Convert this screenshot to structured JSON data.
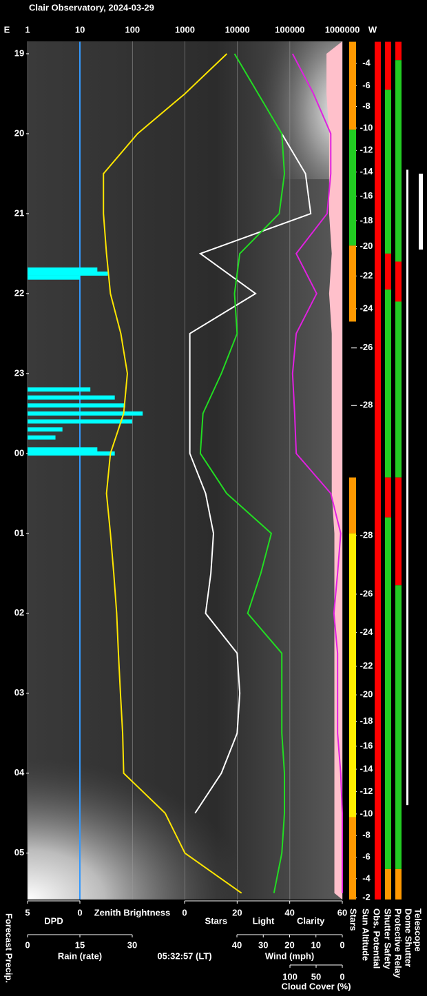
{
  "chart_data": {
    "type": "keogram",
    "title": "Clair Observatory, 2024-03-29",
    "east_label": "E",
    "west_label": "W",
    "xlabel": "Zenith Brightness",
    "xlabel_color": "#ffee00",
    "timestamp": "05:32:57 (LT)",
    "forecast_label": "Forecast Precip.",
    "log_x": true,
    "grid": true,
    "xlim": [
      1,
      1000000
    ],
    "xticks": [
      1,
      10,
      100,
      1000,
      10000,
      100000,
      1000000
    ],
    "ylim": [
      18.845,
      29.58
    ],
    "yticks": [
      19,
      20,
      21,
      22,
      23,
      {
        "value": 24,
        "label": "00"
      },
      {
        "value": 25,
        "label": "01"
      },
      {
        "value": 26,
        "label": "02"
      },
      {
        "value": 27,
        "label": "03"
      },
      {
        "value": 28,
        "label": "04"
      },
      {
        "value": 29,
        "label": "05"
      }
    ],
    "bottom_axes": [
      {
        "lim": [
          5,
          0
        ],
        "ticks": [
          5,
          0
        ],
        "labels": [
          "DPD"
        ],
        "label_colors": [
          "#3399ff"
        ]
      },
      {
        "lim": [
          0,
          60
        ],
        "ticks": [
          0,
          20,
          40,
          60
        ],
        "labels": [
          "Stars",
          "Light",
          "Clarity"
        ],
        "label_colors": [
          "#ffffff",
          "#ffee00",
          "#22dd22"
        ]
      },
      {
        "lim": [
          0,
          30
        ],
        "ticks": [
          0,
          15,
          30
        ],
        "labels": [
          "Rain (rate)"
        ],
        "label_colors": [
          "#00ffff"
        ]
      },
      {
        "lim": [
          40,
          0
        ],
        "ticks": [
          40,
          30,
          20,
          10,
          0
        ],
        "labels": [
          "Wind (mph)"
        ],
        "label_colors": [
          "#ffc0cb"
        ]
      },
      {
        "lim": [
          100,
          0
        ],
        "ticks": [
          100,
          50,
          0
        ],
        "labels": [
          "Cloud Cover (%)"
        ],
        "label_colors": [
          "#e020e0"
        ]
      }
    ],
    "x": [
      19,
      19.5,
      20,
      20.5,
      21,
      21.5,
      22,
      22.5,
      23,
      23.5,
      24,
      24.5,
      25,
      25.5,
      26,
      26.5,
      27,
      27.5,
      28,
      28.5,
      29,
      29.5
    ],
    "series": [
      {
        "axis": 3,
        "style": "area",
        "color": "#ffc0cb",
        "values": [
          6,
          6,
          5,
          5,
          5,
          4,
          5,
          4,
          4,
          4,
          4,
          4,
          3,
          3,
          3,
          3,
          3,
          3,
          3,
          3,
          3,
          3
        ]
      },
      {
        "axis": 0,
        "style": "line",
        "color": "#3399ff",
        "x": [
          18.85,
          29.58
        ],
        "values": [
          0,
          0
        ]
      },
      {
        "axis": 2,
        "style": "bars",
        "color": "#00ffff",
        "x": [
          21.7,
          21.75,
          21.8,
          23.2,
          23.3,
          23.4,
          23.5,
          23.6,
          23.7,
          23.8,
          23.95,
          24.0
        ],
        "values": [
          20,
          23,
          15,
          18,
          25,
          28,
          33,
          30,
          10,
          8,
          20,
          25
        ]
      },
      {
        "axis": "top",
        "style": "line",
        "color": "#ffe600",
        "values": [
          6300,
          1000,
          125,
          28,
          28,
          32,
          38,
          60,
          80,
          68,
          38,
          32,
          38,
          44,
          50,
          54,
          59,
          65,
          68,
          420,
          1000,
          12000
        ]
      },
      {
        "axis": 1,
        "style": "line",
        "color": "#ffffff",
        "values": [
          null,
          null,
          37,
          46,
          48,
          6,
          27,
          2,
          2,
          2,
          2,
          8,
          11,
          10,
          8,
          20,
          21,
          20,
          14,
          4,
          null,
          null
        ]
      },
      {
        "axis": 1,
        "style": "line",
        "color": "#22dd22",
        "values": [
          19,
          28,
          37,
          38,
          36,
          21,
          19,
          20,
          14,
          7,
          6,
          16,
          33,
          29,
          24,
          37,
          37,
          37,
          38,
          38,
          37,
          34
        ]
      },
      {
        "axis": 4,
        "style": "line",
        "color": "#e020e0",
        "values": [
          95,
          55,
          22,
          22,
          29,
          88,
          49,
          88,
          95,
          91,
          88,
          22,
          3,
          9,
          16,
          9,
          9,
          9,
          3,
          0,
          0,
          0
        ]
      }
    ],
    "sun_altitude": {
      "name": "Sun Altitude",
      "x": [
        19.12,
        19.4,
        19.66,
        19.93,
        20.21,
        20.48,
        20.78,
        21.09,
        21.41,
        21.78,
        22.19,
        22.68,
        23.4,
        25.03,
        25.76,
        26.24,
        26.66,
        27.02,
        27.35,
        27.66,
        27.95,
        28.23,
        28.51,
        28.78,
        29.05,
        29.32,
        29.56
      ],
      "values": [
        -4,
        -6,
        -8,
        -10,
        -12,
        -14,
        -16,
        -18,
        -20,
        -22,
        -24,
        -26,
        -28,
        -28,
        -26,
        -24,
        -22,
        -20,
        -18,
        -16,
        -14,
        -12,
        -10,
        -8,
        -6,
        -4,
        -2
      ]
    },
    "status_columns": [
      {
        "name": "Stars",
        "segments": [
          {
            "from": 18.85,
            "to": 19.95,
            "color": "#ff9900"
          },
          {
            "from": 19.95,
            "to": 21.4,
            "color": "#22cc22"
          },
          {
            "from": 21.4,
            "to": 22.35,
            "color": "#ff9900"
          },
          {
            "from": 24.3,
            "to": 25.0,
            "color": "#ff9900"
          },
          {
            "from": 25.0,
            "to": 28.55,
            "color": "#ffee00"
          },
          {
            "from": 28.55,
            "to": 29.58,
            "color": "#ff9900"
          }
        ]
      },
      {
        "name": "Obs. Potential",
        "segments": [
          {
            "from": 18.85,
            "to": 29.58,
            "color": "#ff0000"
          }
        ]
      },
      {
        "name": "Shutter Safety",
        "segments": [
          {
            "from": 18.85,
            "to": 19.45,
            "color": "#ff0000"
          },
          {
            "from": 19.45,
            "to": 21.5,
            "color": "#22cc22"
          },
          {
            "from": 21.5,
            "to": 21.95,
            "color": "#ff0000"
          },
          {
            "from": 21.95,
            "to": 24.3,
            "color": "#22cc22"
          },
          {
            "from": 24.3,
            "to": 24.8,
            "color": "#ff0000"
          },
          {
            "from": 24.8,
            "to": 29.2,
            "color": "#22cc22"
          },
          {
            "from": 29.2,
            "to": 29.58,
            "color": "#ff9900"
          }
        ]
      },
      {
        "name": "Protective Relay",
        "segments": [
          {
            "from": 18.85,
            "to": 19.08,
            "color": "#ff0000"
          },
          {
            "from": 19.08,
            "to": 21.6,
            "color": "#22cc22"
          },
          {
            "from": 21.6,
            "to": 22.1,
            "color": "#ff0000"
          },
          {
            "from": 22.1,
            "to": 24.3,
            "color": "#22cc22"
          },
          {
            "from": 24.3,
            "to": 25.65,
            "color": "#ff0000"
          },
          {
            "from": 25.65,
            "to": 29.2,
            "color": "#22cc22"
          },
          {
            "from": 29.2,
            "to": 29.58,
            "color": "#ff9900"
          }
        ]
      },
      {
        "name": "Dome Shutter",
        "segments": [
          {
            "from": 20.45,
            "to": 28.4,
            "color": "#ffffff"
          }
        ]
      },
      {
        "name": "Telescope",
        "segments": [
          {
            "from": 20.5,
            "to": 21.45,
            "color": "#ffffff"
          }
        ]
      }
    ]
  }
}
